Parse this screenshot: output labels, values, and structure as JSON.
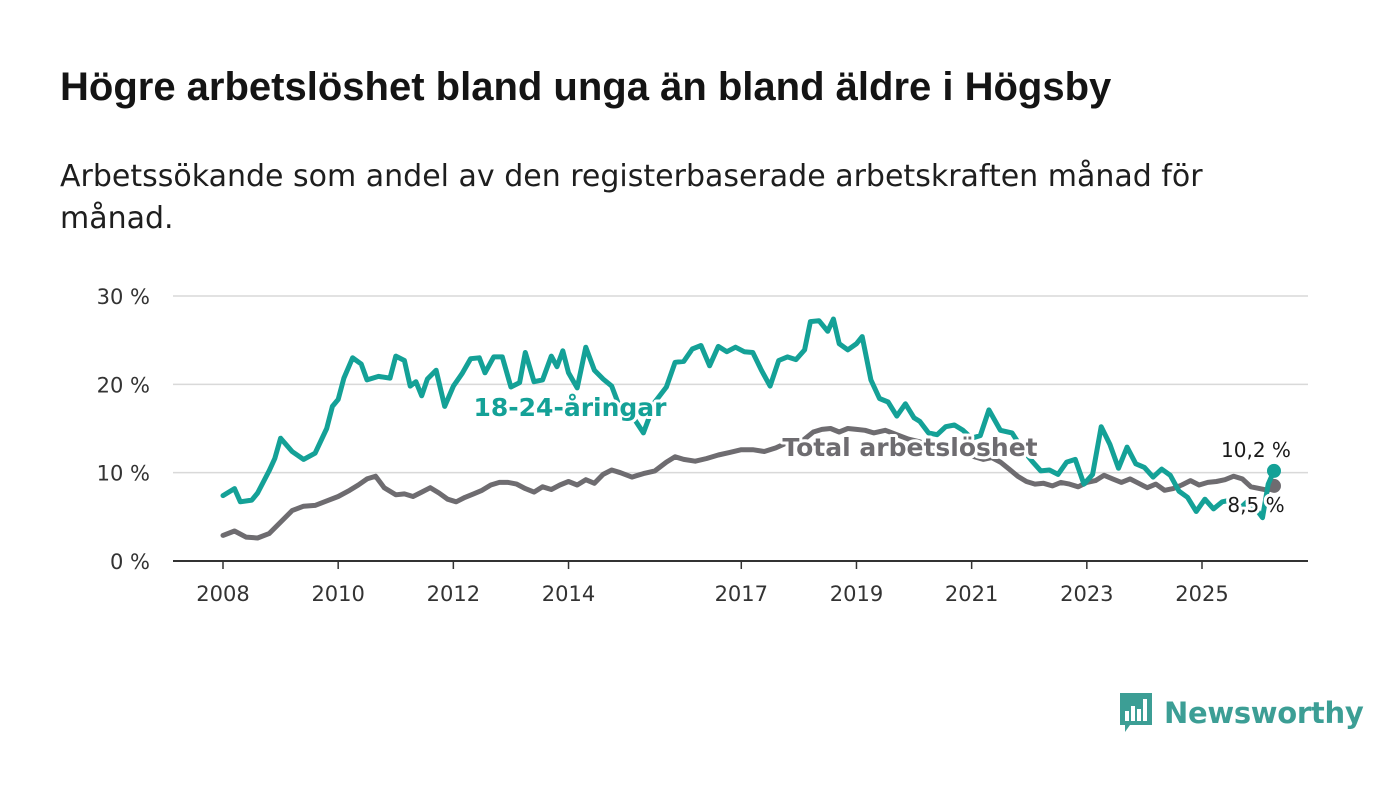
{
  "title": "Högre arbetslöshet bland unga än bland äldre i Högsby",
  "subtitle": "Arbetssökande som andel av den registerbaserade arbetskraften månad för månad.",
  "brand": {
    "name": "Newsworthy",
    "color": "#3c9e95"
  },
  "chart_data": {
    "type": "line",
    "title": "Högre arbetslöshet bland unga än bland äldre i Högsby",
    "xlabel": "",
    "ylabel": "",
    "ylim": [
      0,
      30
    ],
    "xlim": [
      2007.9,
      2026.2
    ],
    "yticks": [
      {
        "value": 0,
        "label": "0 %"
      },
      {
        "value": 10,
        "label": "10 %"
      },
      {
        "value": 20,
        "label": "20 %"
      },
      {
        "value": 30,
        "label": "30 %"
      }
    ],
    "xticks": [
      {
        "value": 2008,
        "label": "2008"
      },
      {
        "value": 2010,
        "label": "2010"
      },
      {
        "value": 2012,
        "label": "2012"
      },
      {
        "value": 2014,
        "label": "2014"
      },
      {
        "value": 2017,
        "label": "2017"
      },
      {
        "value": 2019,
        "label": "2019"
      },
      {
        "value": 2021,
        "label": "2021"
      },
      {
        "value": 2023,
        "label": "2023"
      },
      {
        "value": 2025,
        "label": "2025"
      }
    ],
    "grid": true,
    "series": [
      {
        "name": "18-24-åringar",
        "color": "#14a197",
        "label": "18-24-åringar",
        "end_label": "10,2 %",
        "points": [
          [
            2008.0,
            7.4
          ],
          [
            2008.2,
            8.2
          ],
          [
            2008.3,
            6.7
          ],
          [
            2008.5,
            6.9
          ],
          [
            2008.6,
            7.7
          ],
          [
            2008.8,
            10.2
          ],
          [
            2008.9,
            11.6
          ],
          [
            2009.0,
            13.9
          ],
          [
            2009.2,
            12.4
          ],
          [
            2009.4,
            11.5
          ],
          [
            2009.6,
            12.2
          ],
          [
            2009.8,
            15.0
          ],
          [
            2009.9,
            17.5
          ],
          [
            2010.0,
            18.3
          ],
          [
            2010.1,
            20.7
          ],
          [
            2010.25,
            23.0
          ],
          [
            2010.4,
            22.3
          ],
          [
            2010.5,
            20.5
          ],
          [
            2010.7,
            20.9
          ],
          [
            2010.9,
            20.7
          ],
          [
            2011.0,
            23.2
          ],
          [
            2011.15,
            22.7
          ],
          [
            2011.25,
            19.8
          ],
          [
            2011.35,
            20.3
          ],
          [
            2011.45,
            18.7
          ],
          [
            2011.55,
            20.6
          ],
          [
            2011.7,
            21.6
          ],
          [
            2011.85,
            17.5
          ],
          [
            2012.0,
            19.8
          ],
          [
            2012.15,
            21.2
          ],
          [
            2012.3,
            22.9
          ],
          [
            2012.45,
            23.0
          ],
          [
            2012.55,
            21.3
          ],
          [
            2012.7,
            23.1
          ],
          [
            2012.85,
            23.1
          ],
          [
            2013.0,
            19.7
          ],
          [
            2013.15,
            20.2
          ],
          [
            2013.25,
            23.6
          ],
          [
            2013.4,
            20.3
          ],
          [
            2013.55,
            20.5
          ],
          [
            2013.7,
            23.2
          ],
          [
            2013.8,
            22.0
          ],
          [
            2013.9,
            23.8
          ],
          [
            2014.0,
            21.3
          ],
          [
            2014.15,
            19.6
          ],
          [
            2014.3,
            24.2
          ],
          [
            2014.45,
            21.6
          ],
          [
            2014.6,
            20.6
          ],
          [
            2014.75,
            19.8
          ],
          [
            2014.9,
            17.2
          ],
          [
            2015.1,
            16.5
          ],
          [
            2015.3,
            14.5
          ],
          [
            2015.5,
            18.0
          ],
          [
            2015.7,
            19.7
          ],
          [
            2015.85,
            22.5
          ],
          [
            2016.0,
            22.6
          ],
          [
            2016.15,
            24.0
          ],
          [
            2016.3,
            24.4
          ],
          [
            2016.45,
            22.1
          ],
          [
            2016.6,
            24.3
          ],
          [
            2016.75,
            23.7
          ],
          [
            2016.9,
            24.2
          ],
          [
            2017.05,
            23.7
          ],
          [
            2017.2,
            23.6
          ],
          [
            2017.35,
            21.6
          ],
          [
            2017.5,
            19.8
          ],
          [
            2017.65,
            22.7
          ],
          [
            2017.8,
            23.1
          ],
          [
            2017.95,
            22.8
          ],
          [
            2018.1,
            23.9
          ],
          [
            2018.2,
            27.1
          ],
          [
            2018.35,
            27.2
          ],
          [
            2018.5,
            26.0
          ],
          [
            2018.6,
            27.4
          ],
          [
            2018.7,
            24.6
          ],
          [
            2018.85,
            23.9
          ],
          [
            2019.0,
            24.6
          ],
          [
            2019.1,
            25.4
          ],
          [
            2019.25,
            20.5
          ],
          [
            2019.4,
            18.4
          ],
          [
            2019.55,
            18.0
          ],
          [
            2019.7,
            16.4
          ],
          [
            2019.85,
            17.8
          ],
          [
            2020.0,
            16.2
          ],
          [
            2020.1,
            15.8
          ],
          [
            2020.25,
            14.5
          ],
          [
            2020.4,
            14.3
          ],
          [
            2020.55,
            15.2
          ],
          [
            2020.7,
            15.4
          ],
          [
            2020.85,
            14.8
          ],
          [
            2021.0,
            13.9
          ],
          [
            2021.15,
            14.2
          ],
          [
            2021.3,
            17.1
          ],
          [
            2021.5,
            14.8
          ],
          [
            2021.7,
            14.5
          ],
          [
            2021.9,
            12.5
          ],
          [
            2022.05,
            11.3
          ],
          [
            2022.2,
            10.2
          ],
          [
            2022.35,
            10.3
          ],
          [
            2022.5,
            9.8
          ],
          [
            2022.65,
            11.2
          ],
          [
            2022.8,
            11.5
          ],
          [
            2022.95,
            8.7
          ],
          [
            2023.1,
            9.8
          ],
          [
            2023.25,
            15.2
          ],
          [
            2023.4,
            13.2
          ],
          [
            2023.55,
            10.5
          ],
          [
            2023.7,
            12.9
          ],
          [
            2023.85,
            11.0
          ],
          [
            2024.0,
            10.6
          ],
          [
            2024.15,
            9.5
          ],
          [
            2024.3,
            10.4
          ],
          [
            2024.45,
            9.7
          ],
          [
            2024.6,
            7.9
          ],
          [
            2024.75,
            7.2
          ],
          [
            2024.9,
            5.6
          ],
          [
            2025.05,
            7.0
          ],
          [
            2025.2,
            5.9
          ],
          [
            2025.35,
            6.7
          ],
          [
            2025.5,
            6.9
          ],
          [
            2025.65,
            5.9
          ],
          [
            2025.8,
            6.8
          ],
          [
            2025.95,
            5.8
          ],
          [
            2026.05,
            4.9
          ],
          [
            2026.15,
            8.7
          ],
          [
            2026.25,
            10.2
          ]
        ]
      },
      {
        "name": "Total arbetslöshet",
        "color": "#6e6c70",
        "label": "Total arbetslöshet",
        "end_label": "8,5 %",
        "points": [
          [
            2008.0,
            2.9
          ],
          [
            2008.2,
            3.4
          ],
          [
            2008.4,
            2.7
          ],
          [
            2008.6,
            2.6
          ],
          [
            2008.8,
            3.1
          ],
          [
            2009.0,
            4.4
          ],
          [
            2009.2,
            5.7
          ],
          [
            2009.4,
            6.2
          ],
          [
            2009.6,
            6.3
          ],
          [
            2009.8,
            6.8
          ],
          [
            2010.0,
            7.3
          ],
          [
            2010.2,
            8.0
          ],
          [
            2010.35,
            8.6
          ],
          [
            2010.5,
            9.3
          ],
          [
            2010.65,
            9.6
          ],
          [
            2010.8,
            8.3
          ],
          [
            2011.0,
            7.5
          ],
          [
            2011.15,
            7.6
          ],
          [
            2011.3,
            7.3
          ],
          [
            2011.45,
            7.8
          ],
          [
            2011.6,
            8.3
          ],
          [
            2011.75,
            7.7
          ],
          [
            2011.9,
            7.0
          ],
          [
            2012.05,
            6.7
          ],
          [
            2012.2,
            7.2
          ],
          [
            2012.35,
            7.6
          ],
          [
            2012.5,
            8.0
          ],
          [
            2012.65,
            8.6
          ],
          [
            2012.8,
            8.9
          ],
          [
            2012.95,
            8.9
          ],
          [
            2013.1,
            8.7
          ],
          [
            2013.25,
            8.2
          ],
          [
            2013.4,
            7.8
          ],
          [
            2013.55,
            8.4
          ],
          [
            2013.7,
            8.1
          ],
          [
            2013.85,
            8.6
          ],
          [
            2014.0,
            9.0
          ],
          [
            2014.15,
            8.6
          ],
          [
            2014.3,
            9.2
          ],
          [
            2014.45,
            8.8
          ],
          [
            2014.6,
            9.8
          ],
          [
            2014.75,
            10.3
          ],
          [
            2014.9,
            10.0
          ],
          [
            2015.1,
            9.5
          ],
          [
            2015.3,
            9.9
          ],
          [
            2015.5,
            10.2
          ],
          [
            2015.7,
            11.2
          ],
          [
            2015.85,
            11.8
          ],
          [
            2016.0,
            11.5
          ],
          [
            2016.2,
            11.3
          ],
          [
            2016.4,
            11.6
          ],
          [
            2016.6,
            12.0
          ],
          [
            2016.8,
            12.3
          ],
          [
            2017.0,
            12.6
          ],
          [
            2017.2,
            12.6
          ],
          [
            2017.4,
            12.4
          ],
          [
            2017.6,
            12.8
          ],
          [
            2017.8,
            13.4
          ],
          [
            2017.95,
            13.2
          ],
          [
            2018.1,
            13.8
          ],
          [
            2018.25,
            14.6
          ],
          [
            2018.4,
            14.9
          ],
          [
            2018.55,
            15.0
          ],
          [
            2018.7,
            14.6
          ],
          [
            2018.85,
            15.0
          ],
          [
            2019.0,
            14.9
          ],
          [
            2019.15,
            14.8
          ],
          [
            2019.3,
            14.5
          ],
          [
            2019.5,
            14.8
          ],
          [
            2019.7,
            14.3
          ],
          [
            2019.9,
            13.8
          ],
          [
            2020.1,
            13.5
          ],
          [
            2020.3,
            13.0
          ],
          [
            2020.5,
            12.7
          ],
          [
            2020.7,
            12.5
          ],
          [
            2020.9,
            12.1
          ],
          [
            2021.05,
            11.8
          ],
          [
            2021.2,
            11.5
          ],
          [
            2021.35,
            11.7
          ],
          [
            2021.5,
            11.2
          ],
          [
            2021.65,
            10.4
          ],
          [
            2021.8,
            9.6
          ],
          [
            2021.95,
            9.0
          ],
          [
            2022.1,
            8.7
          ],
          [
            2022.25,
            8.8
          ],
          [
            2022.4,
            8.5
          ],
          [
            2022.55,
            8.9
          ],
          [
            2022.7,
            8.7
          ],
          [
            2022.85,
            8.4
          ],
          [
            2023.0,
            8.9
          ],
          [
            2023.15,
            9.1
          ],
          [
            2023.3,
            9.7
          ],
          [
            2023.45,
            9.3
          ],
          [
            2023.6,
            8.9
          ],
          [
            2023.75,
            9.3
          ],
          [
            2023.9,
            8.8
          ],
          [
            2024.05,
            8.3
          ],
          [
            2024.2,
            8.7
          ],
          [
            2024.35,
            8.0
          ],
          [
            2024.5,
            8.2
          ],
          [
            2024.65,
            8.6
          ],
          [
            2024.8,
            9.1
          ],
          [
            2024.95,
            8.6
          ],
          [
            2025.1,
            8.9
          ],
          [
            2025.25,
            9.0
          ],
          [
            2025.4,
            9.2
          ],
          [
            2025.55,
            9.6
          ],
          [
            2025.7,
            9.3
          ],
          [
            2025.85,
            8.4
          ],
          [
            2026.0,
            8.2
          ],
          [
            2026.15,
            8.0
          ],
          [
            2026.25,
            8.5
          ]
        ]
      }
    ],
    "annotations": [
      {
        "text": "18-24-åringar",
        "series": "18-24-åringar"
      },
      {
        "text": "Total arbetslöshet",
        "series": "Total arbetslöshet"
      }
    ]
  }
}
